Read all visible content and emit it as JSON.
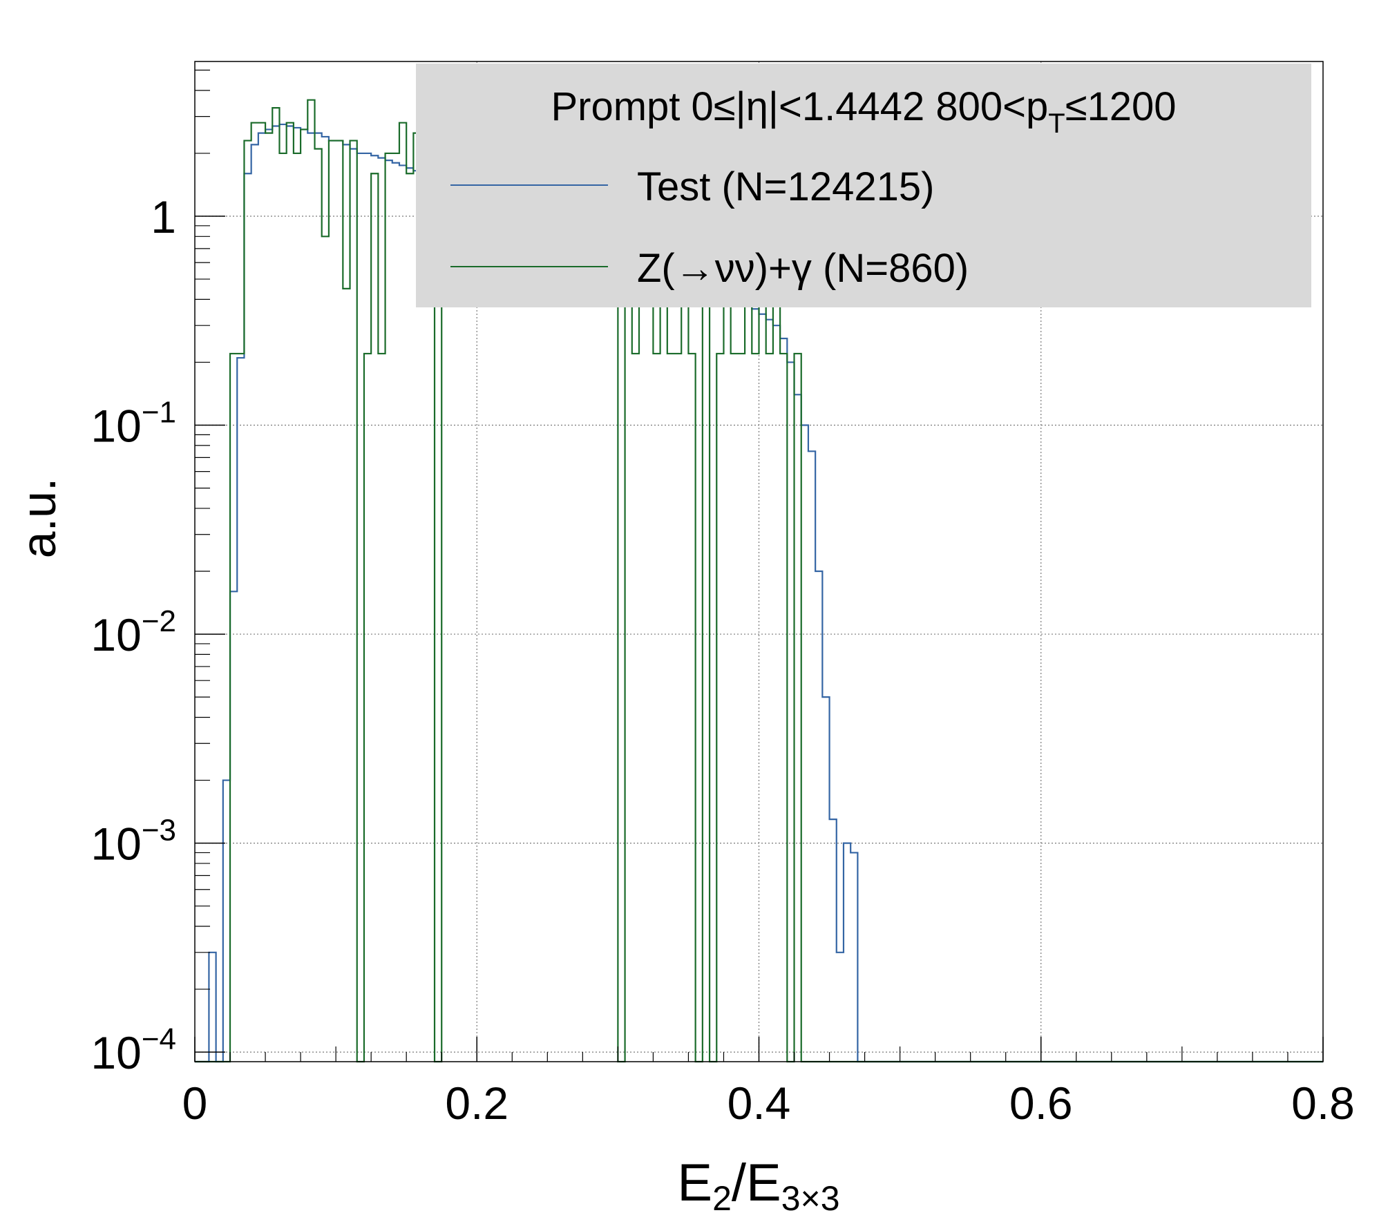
{
  "chart_data": {
    "type": "line",
    "title": "",
    "xlabel": "E2/E3×3",
    "ylabel": "a.u.",
    "xlabel_parts": {
      "main": "E",
      "sub1": "2",
      "slash": "/",
      "main2": "E",
      "sub2": "3×3"
    },
    "xlim": [
      0,
      0.8
    ],
    "ylim": [
      9e-05,
      5.5
    ],
    "y_scale": "log",
    "grid": true,
    "x_ticks": [
      {
        "value": 0,
        "label": "0"
      },
      {
        "value": 0.2,
        "label": "0.2"
      },
      {
        "value": 0.4,
        "label": "0.4"
      },
      {
        "value": 0.6,
        "label": "0.6"
      },
      {
        "value": 0.8,
        "label": "0.8"
      }
    ],
    "y_ticks": [
      {
        "value": 1,
        "label": "1",
        "base": "",
        "exp": ""
      },
      {
        "value": 0.1,
        "label": "10−1",
        "base": "10",
        "exp": "−1"
      },
      {
        "value": 0.01,
        "label": "10−2",
        "base": "10",
        "exp": "−2"
      },
      {
        "value": 0.001,
        "label": "10−3",
        "base": "10",
        "exp": "−3"
      },
      {
        "value": 0.0001,
        "label": "10−4",
        "base": "10",
        "exp": "−4"
      }
    ],
    "legend": {
      "placement": "top-right",
      "header": "Prompt  0≤|η|<1.4442  800<pT≤1200",
      "header_parts": {
        "pre": "Prompt  0≤|η|<1.4442  800<p",
        "sub": "T",
        "post": "≤1200"
      }
    },
    "bin_width": 0.005,
    "series": [
      {
        "name": "Test (N=124215)",
        "color": "#3465a4",
        "x": [
          0.01,
          0.015,
          0.02,
          0.025,
          0.03,
          0.035,
          0.04,
          0.045,
          0.05,
          0.055,
          0.06,
          0.065,
          0.07,
          0.075,
          0.08,
          0.085,
          0.09,
          0.095,
          0.1,
          0.105,
          0.11,
          0.115,
          0.12,
          0.125,
          0.13,
          0.135,
          0.14,
          0.145,
          0.15,
          0.155,
          0.16,
          0.165,
          0.17,
          0.175,
          0.18,
          0.185,
          0.19,
          0.195,
          0.2,
          0.205,
          0.21,
          0.215,
          0.22,
          0.225,
          0.23,
          0.235,
          0.24,
          0.245,
          0.25,
          0.255,
          0.26,
          0.265,
          0.27,
          0.275,
          0.28,
          0.285,
          0.29,
          0.295,
          0.3,
          0.305,
          0.31,
          0.315,
          0.32,
          0.325,
          0.33,
          0.335,
          0.34,
          0.345,
          0.35,
          0.355,
          0.36,
          0.365,
          0.37,
          0.375,
          0.38,
          0.385,
          0.39,
          0.395,
          0.4,
          0.405,
          0.41,
          0.415,
          0.42,
          0.425,
          0.43,
          0.435,
          0.44,
          0.445,
          0.45,
          0.455,
          0.46,
          0.465,
          0.47
        ],
        "values": [
          0.0003,
          9e-05,
          0.002,
          0.016,
          0.21,
          1.6,
          2.2,
          2.5,
          2.6,
          2.7,
          2.75,
          2.7,
          2.65,
          2.6,
          2.5,
          2.5,
          2.4,
          2.3,
          2.3,
          2.2,
          2.1,
          2.0,
          2.0,
          1.95,
          1.9,
          1.85,
          1.8,
          1.75,
          1.7,
          1.65,
          1.6,
          1.55,
          1.5,
          1.45,
          1.4,
          1.35,
          1.3,
          1.3,
          1.25,
          1.2,
          1.2,
          1.15,
          1.1,
          1.1,
          1.05,
          1.0,
          1.0,
          0.98,
          0.95,
          0.92,
          0.9,
          0.88,
          0.86,
          0.84,
          0.82,
          0.8,
          0.78,
          0.76,
          0.74,
          0.72,
          0.7,
          0.68,
          0.66,
          0.64,
          0.62,
          0.6,
          0.58,
          0.56,
          0.54,
          0.52,
          0.5,
          0.48,
          0.46,
          0.44,
          0.42,
          0.4,
          0.38,
          0.36,
          0.34,
          0.32,
          0.3,
          0.26,
          0.2,
          0.14,
          0.1,
          0.075,
          0.02,
          0.005,
          0.0013,
          0.0003,
          0.001,
          0.0009,
          9e-05
        ]
      },
      {
        "name": "Z(→νν)+γ (N=860)",
        "color": "#1a6b2a",
        "x": [
          0.01,
          0.015,
          0.02,
          0.025,
          0.03,
          0.035,
          0.04,
          0.045,
          0.05,
          0.055,
          0.06,
          0.065,
          0.07,
          0.075,
          0.08,
          0.085,
          0.09,
          0.095,
          0.1,
          0.105,
          0.11,
          0.115,
          0.12,
          0.125,
          0.13,
          0.135,
          0.14,
          0.145,
          0.15,
          0.155,
          0.16,
          0.165,
          0.17,
          0.175,
          0.18,
          0.185,
          0.19,
          0.195,
          0.2,
          0.205,
          0.21,
          0.215,
          0.22,
          0.225,
          0.23,
          0.235,
          0.24,
          0.245,
          0.25,
          0.255,
          0.26,
          0.265,
          0.27,
          0.275,
          0.28,
          0.285,
          0.29,
          0.295,
          0.3,
          0.305,
          0.31,
          0.315,
          0.32,
          0.325,
          0.33,
          0.335,
          0.34,
          0.345,
          0.35,
          0.355,
          0.36,
          0.365,
          0.37,
          0.375,
          0.38,
          0.385,
          0.39,
          0.395,
          0.4,
          0.405,
          0.41,
          0.415,
          0.42,
          0.425,
          0.43,
          0.435,
          0.44,
          0.445,
          0.45
        ],
        "values": [
          9e-05,
          9e-05,
          9e-05,
          0.22,
          0.22,
          2.3,
          2.8,
          2.8,
          2.5,
          3.3,
          2.0,
          2.8,
          2.0,
          2.6,
          3.6,
          2.1,
          0.8,
          2.3,
          2.3,
          0.45,
          2.3,
          9e-05,
          0.22,
          1.6,
          0.22,
          2.0,
          2.0,
          2.8,
          1.6,
          2.5,
          1.7,
          2.0,
          9e-05,
          0.9,
          1.6,
          0.45,
          1.6,
          1.6,
          2.3,
          1.0,
          1.6,
          0.45,
          1.3,
          1.3,
          0.9,
          1.3,
          1.3,
          0.9,
          1.3,
          1.3,
          0.9,
          1.3,
          1.3,
          0.9,
          1.3,
          1.3,
          0.9,
          1.3,
          9e-05,
          0.45,
          0.22,
          0.45,
          0.9,
          0.22,
          0.45,
          0.22,
          0.22,
          0.45,
          0.22,
          9e-05,
          0.45,
          9e-05,
          0.22,
          0.45,
          0.22,
          0.22,
          0.45,
          0.22,
          0.45,
          0.22,
          0.45,
          0.22,
          9e-05,
          0.22,
          9e-05,
          9e-05,
          9e-05,
          9e-05,
          9e-05
        ]
      }
    ]
  }
}
